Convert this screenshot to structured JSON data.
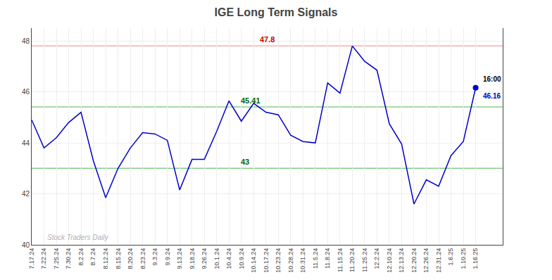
{
  "chart_data": {
    "type": "line",
    "title": "IGE Long Term Signals",
    "categories": [
      "7.17.24",
      "7.22.24",
      "7.25.24",
      "7.30.24",
      "8.2.24",
      "8.7.24",
      "8.12.24",
      "8.15.24",
      "8.20.24",
      "8.23.24",
      "9.3.24",
      "9.9.24",
      "9.13.24",
      "9.18.24",
      "9.26.24",
      "10.1.24",
      "10.4.24",
      "10.9.24",
      "10.14.24",
      "10.17.24",
      "10.23.24",
      "10.28.24",
      "10.31.24",
      "11.5.24",
      "11.8.24",
      "11.15.24",
      "11.20.24",
      "11.25.24",
      "12.2.24",
      "12.10.24",
      "12.13.24",
      "12.20.24",
      "12.26.24",
      "12.31.24",
      "1.6.25",
      "1.10.25",
      "1.16.25"
    ],
    "values": [
      44.9,
      43.8,
      44.2,
      44.8,
      45.2,
      43.3,
      41.85,
      43.0,
      43.8,
      44.4,
      44.35,
      44.1,
      42.15,
      43.35,
      43.35,
      44.45,
      45.65,
      44.85,
      45.55,
      45.2,
      45.1,
      44.3,
      44.05,
      44.0,
      46.35,
      45.95,
      47.8,
      47.2,
      46.85,
      44.75,
      43.95,
      41.6,
      42.55,
      42.3,
      43.5,
      44.05,
      46.16
    ],
    "color": "#0000cc",
    "ylim": [
      40,
      48.5
    ],
    "yticks": [
      40,
      42,
      44,
      46,
      48
    ],
    "grid": true,
    "reference_lines": [
      {
        "value": 47.8,
        "label": "47.8",
        "color": "#ffaaaa",
        "label_color": "#cc0000"
      },
      {
        "value": 45.41,
        "label": "45.41",
        "color": "#88cc88",
        "label_color": "#006600"
      },
      {
        "value": 43.0,
        "label": "43",
        "color": "#88cc88",
        "label_color": "#006600"
      }
    ],
    "end_labels": [
      {
        "text": "16:00",
        "color": "#000000"
      },
      {
        "text": "46.16",
        "color": "#0000cc"
      }
    ],
    "watermark": {
      "text": "Stock Traders Daily",
      "color": "#b0b0b0"
    }
  }
}
